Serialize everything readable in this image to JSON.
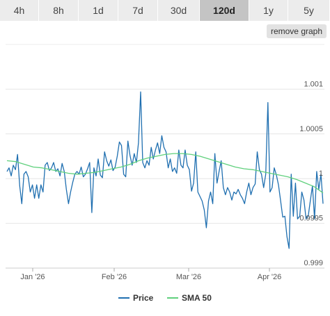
{
  "range_tabs": [
    {
      "label": "4h",
      "active": false
    },
    {
      "label": "8h",
      "active": false
    },
    {
      "label": "1d",
      "active": false
    },
    {
      "label": "7d",
      "active": false
    },
    {
      "label": "30d",
      "active": false
    },
    {
      "label": "120d",
      "active": true
    },
    {
      "label": "1y",
      "active": false
    },
    {
      "label": "5y",
      "active": false
    }
  ],
  "remove_graph_label": "remove graph",
  "chart_data": {
    "type": "line",
    "x_tick_labels": [
      "Jan '26",
      "Feb '26",
      "Mar '26",
      "Apr '26"
    ],
    "y_tick_labels": [
      "1.001",
      "1.0005",
      "1",
      "0.9995",
      "0.999"
    ],
    "ylim": [
      0.999,
      1.0015
    ],
    "grid": true,
    "legend_position": "bottom",
    "series": [
      {
        "name": "Price",
        "color": "#1f6fb0",
        "values": [
          1.00008,
          1.00012,
          1.00003,
          1.00015,
          1.0001,
          1.00027,
          0.99992,
          0.99972,
          1.00005,
          1.00008,
          1.00002,
          0.99985,
          0.99993,
          0.99978,
          0.99993,
          0.99978,
          0.99993,
          0.99985,
          1.00015,
          1.00018,
          1.00009,
          1.00012,
          1.00018,
          1.00008,
          1.00011,
          1.00003,
          1.00017,
          1.00008,
          0.99988,
          0.99972,
          0.99985,
          0.99996,
          1.00005,
          1.00008,
          1.00005,
          1.00013,
          1.00002,
          1.00005,
          1.00011,
          1.00018,
          0.99962,
          1.00012,
          1.00003,
          1.00022,
          1.00004,
          1.00001,
          1.0003,
          1.0002,
          1.00014,
          1.00021,
          1.00009,
          1.00013,
          1.00025,
          1.00041,
          1.00037,
          1.00005,
          1.00002,
          1.00042,
          1.00026,
          1.00015,
          1.00028,
          1.00018,
          1.0004,
          1.00097,
          1.00018,
          1.00012,
          1.0002,
          1.00015,
          1.00035,
          1.00022,
          1.00032,
          1.0004,
          1.00028,
          1.00048,
          1.00035,
          1.0003,
          1.00012,
          1.00022,
          1.00008,
          1.00012,
          1.00006,
          1.00032,
          1.00015,
          1.00012,
          1.00032,
          1.00015,
          1.0001,
          0.99986,
          0.99995,
          1.0003,
          0.99985,
          0.9998,
          0.99975,
          0.99965,
          0.99945,
          0.99975,
          0.99985,
          0.99972,
          1.00028,
          0.99995,
          1.00008,
          1.0002,
          0.9999,
          0.99982,
          0.9999,
          0.99985,
          0.99976,
          0.99985,
          0.99983,
          0.99988,
          0.99982,
          0.99978,
          0.99972,
          0.99985,
          0.99995,
          0.99982,
          0.9999,
          0.99994,
          1.0003,
          1.0001,
          1.00005,
          0.9999,
          1.00005,
          1.00085,
          0.99985,
          0.9999,
          1.00012,
          1.00004,
          0.99993,
          0.99975,
          0.99957,
          0.99958,
          0.99935,
          0.99922,
          1.00005,
          0.99958,
          0.99995,
          0.99955,
          0.99958,
          0.99985,
          0.99976,
          0.99955,
          0.99958,
          0.99975,
          0.99992,
          0.99955,
          1.00008,
          0.99988,
          1.00005,
          0.99972
        ]
      },
      {
        "name": "SMA 50",
        "color": "#5fd07c",
        "values": [
          1.0002,
          1.00019,
          1.00016,
          1.00013,
          1.00012,
          1.0001,
          1.00008,
          1.00006,
          1.00005,
          1.00006,
          1.00007,
          1.00009,
          1.00011,
          1.00013,
          1.00016,
          1.0002,
          1.00023,
          1.00025,
          1.00027,
          1.00028,
          1.00028,
          1.00027,
          1.00025,
          1.00022,
          1.00019,
          1.00016,
          1.00013,
          1.00011,
          1.0001,
          1.00008,
          1.00006,
          1.00004,
          1.00002,
          0.99999,
          0.99995,
          0.99991,
          0.99984
        ]
      }
    ]
  }
}
